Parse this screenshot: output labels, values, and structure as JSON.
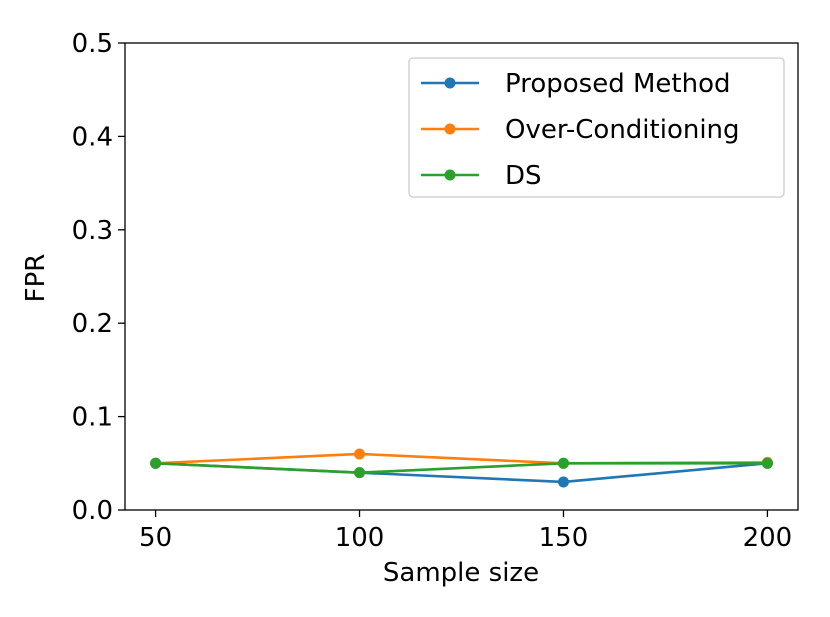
{
  "chart_data": {
    "type": "line",
    "title": "",
    "xlabel": "Sample size",
    "ylabel": "FPR",
    "x": [
      50,
      100,
      150,
      200
    ],
    "x_tick_labels": [
      "50",
      "100",
      "150",
      "200"
    ],
    "y_tick_labels": [
      "0.0",
      "0.1",
      "0.2",
      "0.3",
      "0.4",
      "0.5"
    ],
    "xlim": [
      42.5,
      207.5
    ],
    "ylim": [
      0.0,
      0.5
    ],
    "y_ticks": [
      0.0,
      0.1,
      0.2,
      0.3,
      0.4,
      0.5
    ],
    "grid": false,
    "legend_location": "top-right",
    "series": [
      {
        "name": "Proposed Method",
        "color": "#1f77b4",
        "values": [
          0.05,
          0.04,
          0.03,
          0.05
        ]
      },
      {
        "name": "Over-Conditioning",
        "color": "#ff7f0e",
        "values": [
          0.05,
          0.06,
          0.05,
          0.051
        ]
      },
      {
        "name": "DS",
        "color": "#2ca02c",
        "values": [
          0.05,
          0.04,
          0.05,
          0.05
        ]
      }
    ]
  }
}
